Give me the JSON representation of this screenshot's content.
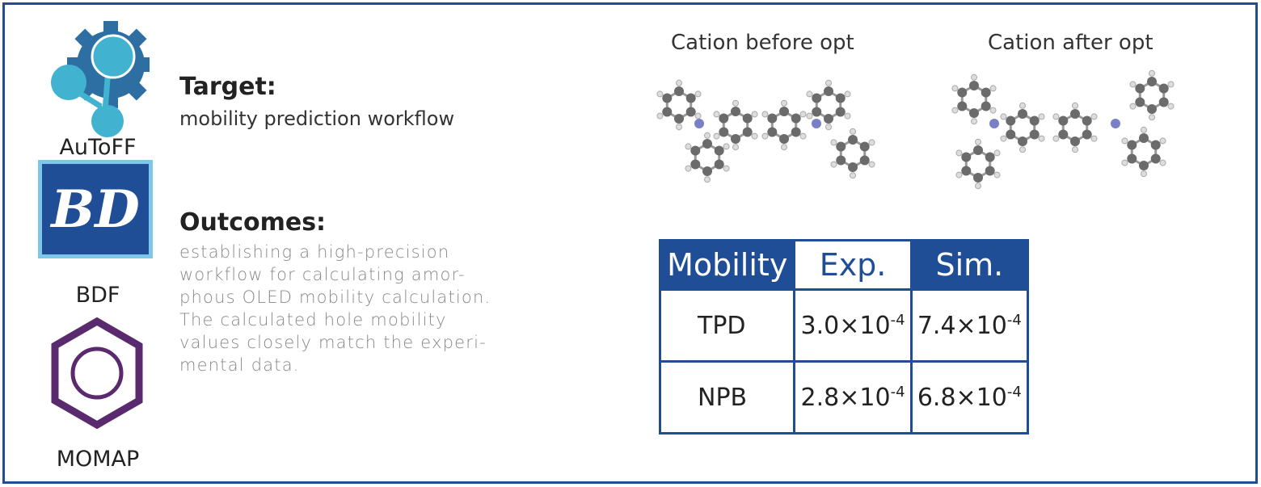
{
  "logos": [
    {
      "label": "AuToFF",
      "icon": "gear-network-icon"
    },
    {
      "label": "BDF",
      "icon": "bdf-logo-icon",
      "mark": "BD"
    },
    {
      "label": "MOMAP",
      "icon": "hexagon-ring-icon"
    }
  ],
  "target": {
    "heading": "Target:",
    "text": "mobility prediction workflow"
  },
  "outcomes": {
    "heading": "Outcomes:",
    "lines": [
      "establishing a high-precision",
      "workflow for calculating amor-",
      "phous OLED mobility calculation.",
      "The calculated hole mobility",
      "values closely match the experi-",
      "mental data."
    ]
  },
  "molecules": [
    {
      "title": "Cation before opt"
    },
    {
      "title": "Cation after opt"
    }
  ],
  "table": {
    "headers": [
      "Mobility",
      "Exp.",
      "Sim."
    ],
    "rows": [
      {
        "name": "TPD",
        "exp": "3.0×10",
        "exp_exp": "-4",
        "sim": "7.4×10",
        "sim_exp": "-4"
      },
      {
        "name": "NPB",
        "exp": "2.8×10",
        "exp_exp": "-4",
        "sim": "6.8×10",
        "sim_exp": "-4"
      }
    ]
  },
  "colors": {
    "frame": "#1f4e96",
    "autoff_gear": "#2d6fa3",
    "autoff_nodes": "#41b2cf",
    "bdf": "#1f4e96",
    "momap": "#5a2a6e"
  }
}
